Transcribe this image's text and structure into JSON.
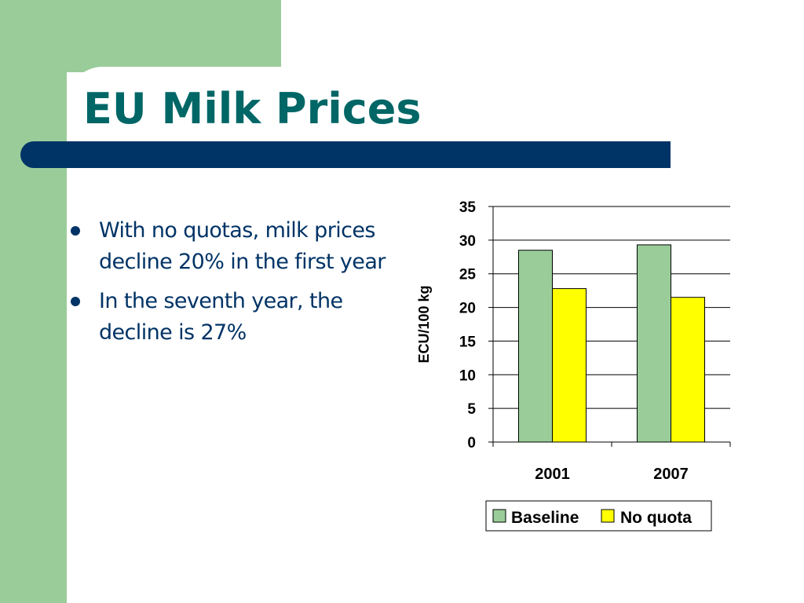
{
  "slide": {
    "title": "EU Milk Prices",
    "bullets": [
      "With no quotas, milk prices decline 20% in the first year",
      "In the seventh year, the decline is 27%"
    ]
  },
  "colors": {
    "accent_green": "#99cc99",
    "title_bar": "#003366",
    "title_text": "#006666",
    "body_text": "#003366"
  },
  "chart_data": {
    "type": "bar",
    "categories": [
      "2001",
      "2007"
    ],
    "series": [
      {
        "name": "Baseline",
        "values": [
          28.5,
          29.3
        ],
        "color": "#99cc99"
      },
      {
        "name": "No quota",
        "values": [
          22.8,
          21.5
        ],
        "color": "#ffff00"
      }
    ],
    "ylabel": "ECU/100 kg",
    "xlabel": "",
    "ylim": [
      0,
      35
    ],
    "yticks": [
      "0",
      "5",
      "10",
      "15",
      "20",
      "25",
      "30",
      "35"
    ],
    "grid": true,
    "legend": "bottom"
  }
}
